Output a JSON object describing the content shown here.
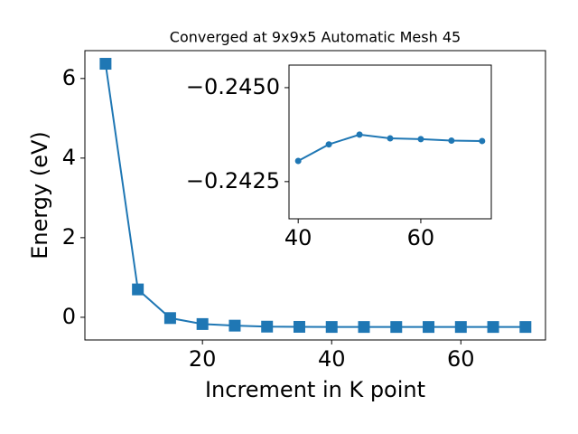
{
  "chart_data": [
    {
      "type": "line",
      "title": "Converged at 9x9x5 Automatic Mesh 45",
      "x_label": "Increment in K point",
      "y_label": "Energy (eV)",
      "x": [
        5,
        10,
        15,
        20,
        25,
        30,
        35,
        40,
        45,
        50,
        55,
        60,
        65,
        70
      ],
      "series": [
        {
          "color": "#1f77b4",
          "marker": "square",
          "values": [
            6.37,
            0.7,
            -0.02,
            -0.17,
            -0.21,
            -0.235,
            -0.24,
            -0.24305,
            -0.24349,
            -0.24375,
            -0.24365,
            -0.24363,
            -0.24359,
            -0.24358
          ]
        }
      ],
      "xlim": [
        1.8,
        73.1
      ],
      "xticks": [
        20,
        40,
        60
      ],
      "ylim": [
        -0.57,
        6.7
      ],
      "yticks": [
        0,
        2,
        4,
        6
      ]
    },
    {
      "type": "line",
      "x": [
        40,
        45,
        50,
        55,
        60,
        65,
        70
      ],
      "series": [
        {
          "color": "#1f77b4",
          "marker": "circle",
          "values": [
            -0.24305,
            -0.24349,
            -0.24375,
            -0.24365,
            -0.24363,
            -0.24359,
            -0.24358
          ]
        }
      ],
      "xlim": [
        38.5,
        71.5
      ],
      "xticks": [
        40,
        60
      ],
      "ylim": [
        -0.24151,
        -0.2456
      ],
      "yticks": [
        {
          "value": -0.245,
          "label": "−0.2450"
        },
        {
          "value": -0.2425,
          "label": "−0.2425"
        }
      ]
    }
  ]
}
